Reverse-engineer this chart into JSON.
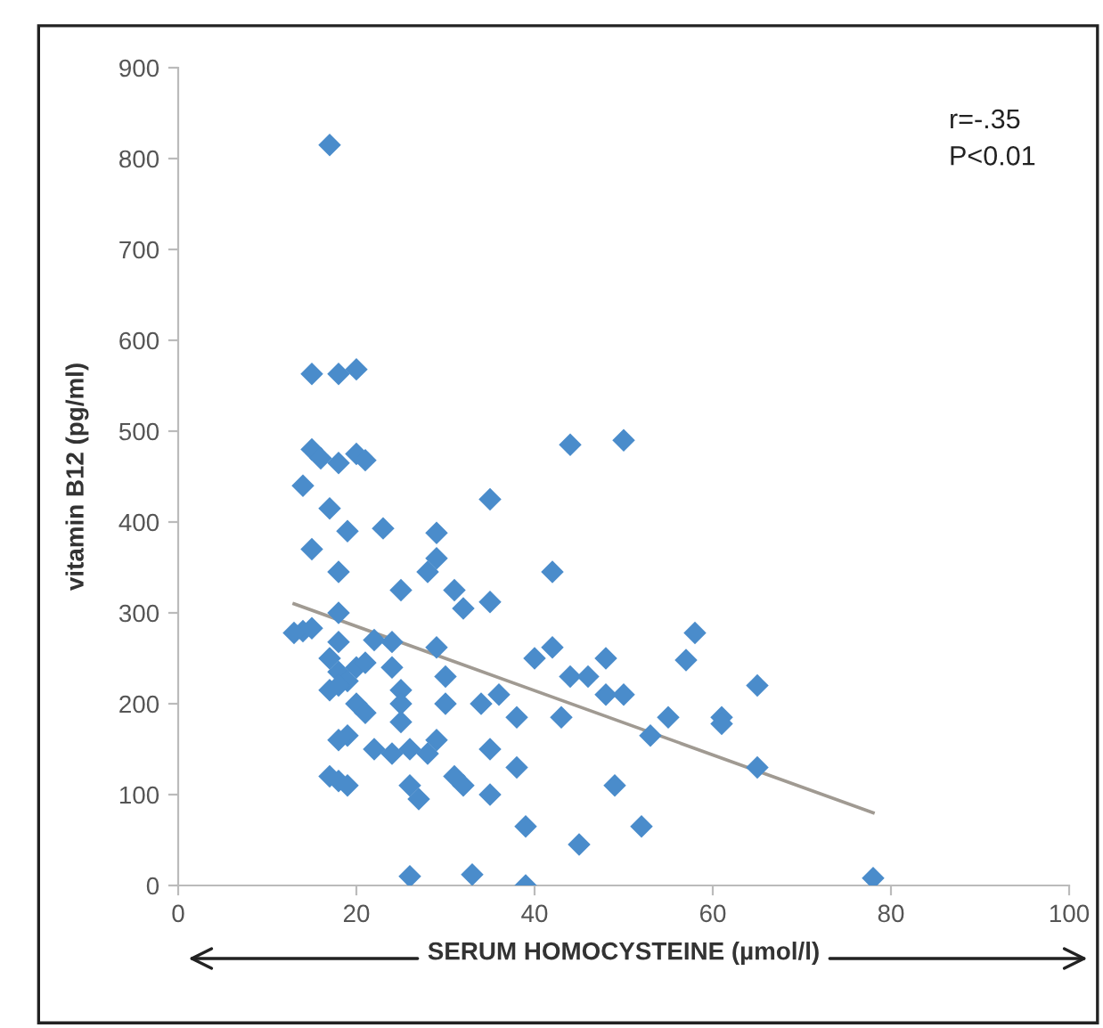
{
  "chart_data": {
    "type": "scatter",
    "xlabel": "SERUM HOMOCYSTEINE (µmol/l)",
    "ylabel": "vitamin B12 (pg/ml)",
    "xlim": [
      0,
      100
    ],
    "ylim": [
      0,
      900
    ],
    "xticks": [
      0,
      20,
      40,
      60,
      80,
      100
    ],
    "yticks": [
      0,
      100,
      200,
      300,
      400,
      500,
      600,
      700,
      800,
      900
    ],
    "grid": false,
    "legend": false,
    "marker": "diamond",
    "annotations": [
      "r=-.35",
      "P<0.01"
    ],
    "series": [
      {
        "color": "#4a8ccb",
        "x": [
          17,
          15,
          20,
          18,
          15,
          16,
          18,
          20,
          21,
          14,
          17,
          19,
          23,
          15,
          18,
          18,
          14,
          13,
          15,
          18,
          17,
          18,
          20,
          19,
          21,
          22,
          24,
          25,
          28,
          29,
          29,
          31,
          32,
          35,
          35,
          42,
          44,
          50,
          18,
          17,
          19,
          18,
          20,
          21,
          22,
          24,
          25,
          25,
          25,
          24,
          17,
          18,
          19,
          26,
          26,
          27,
          28,
          29,
          29,
          30,
          30,
          31,
          32,
          34,
          35,
          35,
          36,
          38,
          38,
          39,
          40,
          42,
          43,
          44,
          46,
          48,
          48,
          49,
          50,
          52,
          53,
          55,
          57,
          58,
          61,
          61,
          65,
          65,
          45,
          33,
          26,
          39,
          78
        ],
        "values": [
          815,
          563,
          568,
          563,
          480,
          470,
          465,
          475,
          468,
          440,
          415,
          390,
          393,
          370,
          345,
          300,
          280,
          278,
          283,
          268,
          250,
          235,
          240,
          225,
          245,
          270,
          268,
          325,
          345,
          360,
          388,
          325,
          305,
          312,
          425,
          345,
          485,
          490,
          220,
          215,
          165,
          160,
          200,
          190,
          150,
          240,
          215,
          180,
          200,
          145,
          120,
          115,
          110,
          110,
          150,
          95,
          145,
          160,
          262,
          230,
          200,
          120,
          110,
          200,
          150,
          100,
          210,
          185,
          130,
          65,
          250,
          262,
          185,
          230,
          230,
          210,
          250,
          110,
          210,
          65,
          165,
          185,
          248,
          278,
          185,
          178,
          220,
          130,
          45,
          12,
          10,
          0,
          8
        ]
      },
      {
        "type": "line",
        "color": "#a09a92",
        "marker": "none",
        "x": [
          13,
          78
        ],
        "values": [
          310,
          80
        ]
      }
    ]
  }
}
